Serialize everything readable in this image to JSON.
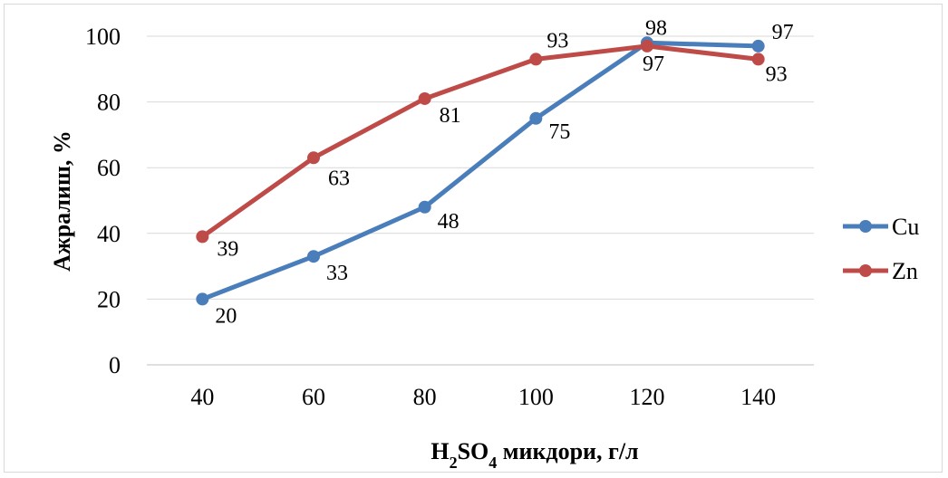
{
  "chart_data": {
    "type": "line",
    "categories": [
      "40",
      "60",
      "80",
      "100",
      "120",
      "140"
    ],
    "series": [
      {
        "name": "Cu",
        "values": [
          20,
          33,
          48,
          75,
          98,
          97
        ],
        "color": "#4a7ebb"
      },
      {
        "name": "Zn",
        "values": [
          39,
          63,
          81,
          93,
          97,
          93
        ],
        "color": "#be4b48"
      }
    ],
    "ylabel": "Ажралиш, %",
    "xlabel": {
      "parts": [
        {
          "text": "H",
          "sub": false
        },
        {
          "text": "2",
          "sub": true
        },
        {
          "text": "SO",
          "sub": false
        },
        {
          "text": "4",
          "sub": true
        },
        {
          "text": " микдори, г/л",
          "sub": false
        }
      ]
    },
    "ylim": [
      0,
      100
    ],
    "yticks": [
      "0",
      "20",
      "40",
      "60",
      "80",
      "100"
    ],
    "grid": true,
    "legend_position": "right"
  }
}
